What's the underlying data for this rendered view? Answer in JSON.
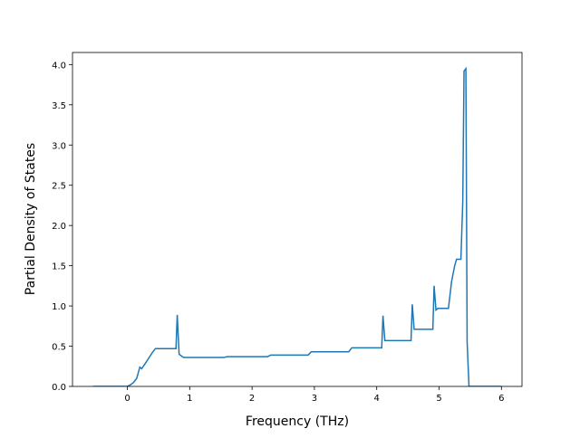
{
  "chart_data": {
    "type": "line",
    "xlabel": "Frequency (THz)",
    "ylabel": "Partial Density of States",
    "x": [
      -0.55,
      0,
      0.05,
      0.1,
      0.15,
      0.2,
      0.23,
      0.3,
      0.4,
      0.45,
      0.55,
      0.78,
      0.8,
      0.83,
      0.9,
      1.0,
      1.55,
      1.6,
      2.25,
      2.3,
      2.9,
      2.95,
      3.55,
      3.6,
      4.08,
      4.1,
      4.13,
      4.55,
      4.57,
      4.6,
      4.9,
      4.92,
      4.95,
      4.98,
      5.15,
      5.2,
      5.25,
      5.28,
      5.35,
      5.38,
      5.4,
      5.43,
      5.45,
      5.48,
      6.0
    ],
    "series": [
      {
        "color": "#1f77b4",
        "values": [
          0,
          0,
          0.02,
          0.05,
          0.1,
          0.24,
          0.22,
          0.3,
          0.42,
          0.47,
          0.47,
          0.47,
          0.89,
          0.4,
          0.36,
          0.36,
          0.36,
          0.37,
          0.37,
          0.39,
          0.39,
          0.43,
          0.43,
          0.48,
          0.48,
          0.88,
          0.57,
          0.57,
          1.02,
          0.71,
          0.71,
          1.25,
          0.95,
          0.97,
          0.97,
          1.3,
          1.5,
          1.58,
          1.58,
          2.3,
          3.92,
          3.95,
          0.55,
          0,
          0
        ]
      }
    ],
    "xlim": [
      -0.88,
      6.33
    ],
    "ylim": [
      0,
      4.15
    ],
    "xticks": [
      0,
      1,
      2,
      3,
      4,
      5,
      6
    ],
    "yticks": [
      {
        "value": 0,
        "label": "0.0"
      },
      {
        "value": 0.5,
        "label": "0.5"
      },
      {
        "value": 1,
        "label": "1.0"
      },
      {
        "value": 1.5,
        "label": "1.5"
      },
      {
        "value": 2,
        "label": "2.0"
      },
      {
        "value": 2.5,
        "label": "2.5"
      },
      {
        "value": 3,
        "label": "3.0"
      },
      {
        "value": 3.5,
        "label": "3.5"
      },
      {
        "value": 4,
        "label": "4.0"
      }
    ]
  }
}
